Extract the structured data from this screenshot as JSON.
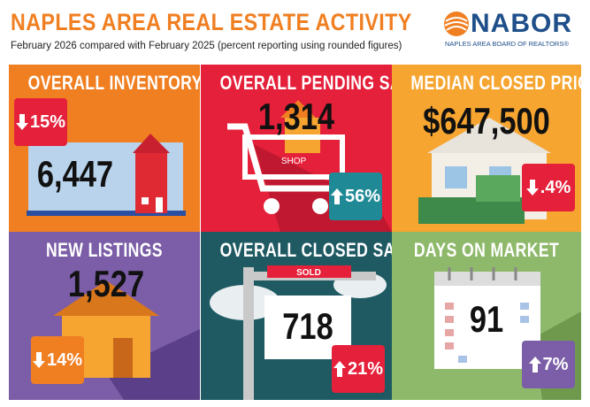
{
  "header": {
    "title": "NAPLES AREA REAL ESTATE ACTIVITY",
    "subtitle": "February 2026 compared with February 2025 (percent reporting using rounded figures)",
    "logo": "NABOR",
    "logo_sub": "NAPLES AREA BOARD OF REALTORS®"
  },
  "tiles": [
    {
      "title": "OVERALL INVENTORY",
      "value": "6,447",
      "change": "15%",
      "direction": "down"
    },
    {
      "title": "OVERALL PENDING SALES",
      "value": "1,314",
      "change": "56%",
      "direction": "up",
      "tag": "SHOP"
    },
    {
      "title": "MEDIAN CLOSED PRICE",
      "value": "$647,500",
      "change": ".4%",
      "direction": "down"
    },
    {
      "title": "NEW LISTINGS",
      "value": "1,527",
      "change": "14%",
      "direction": "down"
    },
    {
      "title": "OVERALL CLOSED SALES",
      "value": "718",
      "change": "21%",
      "direction": "up",
      "sign": "SOLD"
    },
    {
      "title": "DAYS ON MARKET",
      "value": "91",
      "change": "7%",
      "direction": "up"
    }
  ]
}
